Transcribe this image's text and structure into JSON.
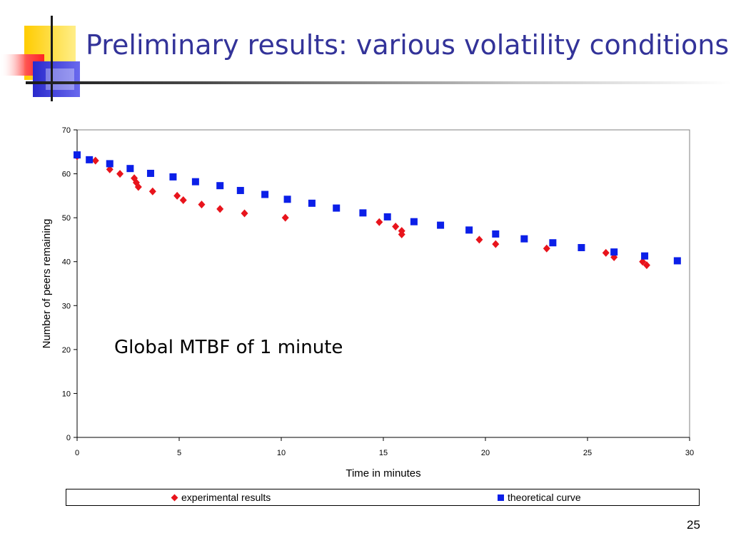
{
  "slide": {
    "title": "Preliminary results: various volatility conditions",
    "annotation": "Global MTBF of 1 minute",
    "page_number": "25"
  },
  "colors": {
    "title": "#333399",
    "experimental": "#e8141c",
    "theoretical": "#0b1fe8",
    "logo_yellow": "#ffcc00",
    "logo_blue": "#3333cc",
    "logo_red": "#ff3333"
  },
  "chart_data": {
    "type": "scatter",
    "xlabel": "Time in minutes",
    "ylabel": "Number of peers remaining",
    "xlim": [
      0,
      30
    ],
    "ylim": [
      0,
      70
    ],
    "xticks": [
      0,
      5,
      10,
      15,
      20,
      25,
      30
    ],
    "yticks": [
      0,
      10,
      20,
      30,
      40,
      50,
      60,
      70
    ],
    "grid": false,
    "legend_position": "bottom",
    "series": [
      {
        "name": "experimental results",
        "marker": "diamond",
        "color": "#e8141c",
        "points": [
          [
            0,
            64
          ],
          [
            0.9,
            63
          ],
          [
            1.6,
            61
          ],
          [
            2.1,
            60
          ],
          [
            2.8,
            59
          ],
          [
            2.9,
            58
          ],
          [
            3.0,
            57
          ],
          [
            3.7,
            56
          ],
          [
            4.9,
            55
          ],
          [
            5.2,
            54
          ],
          [
            6.1,
            53
          ],
          [
            7.0,
            52
          ],
          [
            8.2,
            51
          ],
          [
            10.2,
            50
          ],
          [
            14.8,
            49
          ],
          [
            15.6,
            48
          ],
          [
            15.9,
            47
          ],
          [
            15.9,
            46.2
          ],
          [
            19.7,
            45
          ],
          [
            20.5,
            44
          ],
          [
            23.0,
            43
          ],
          [
            25.9,
            42
          ],
          [
            26.3,
            41
          ],
          [
            27.7,
            40
          ],
          [
            27.9,
            39.2
          ]
        ]
      },
      {
        "name": "theoretical curve",
        "marker": "square",
        "color": "#0b1fe8",
        "points": [
          [
            0,
            64.3
          ],
          [
            0.6,
            63.2
          ],
          [
            1.6,
            62.3
          ],
          [
            2.6,
            61.2
          ],
          [
            3.6,
            60.1
          ],
          [
            4.7,
            59.3
          ],
          [
            5.8,
            58.2
          ],
          [
            7.0,
            57.3
          ],
          [
            8.0,
            56.2
          ],
          [
            9.2,
            55.3
          ],
          [
            10.3,
            54.2
          ],
          [
            11.5,
            53.3
          ],
          [
            12.7,
            52.2
          ],
          [
            14.0,
            51.1
          ],
          [
            15.2,
            50.2
          ],
          [
            16.5,
            49.1
          ],
          [
            17.8,
            48.3
          ],
          [
            19.2,
            47.2
          ],
          [
            20.5,
            46.3
          ],
          [
            21.9,
            45.2
          ],
          [
            23.3,
            44.3
          ],
          [
            24.7,
            43.2
          ],
          [
            26.3,
            42.2
          ],
          [
            27.8,
            41.3
          ],
          [
            29.4,
            40.2
          ]
        ]
      }
    ]
  }
}
